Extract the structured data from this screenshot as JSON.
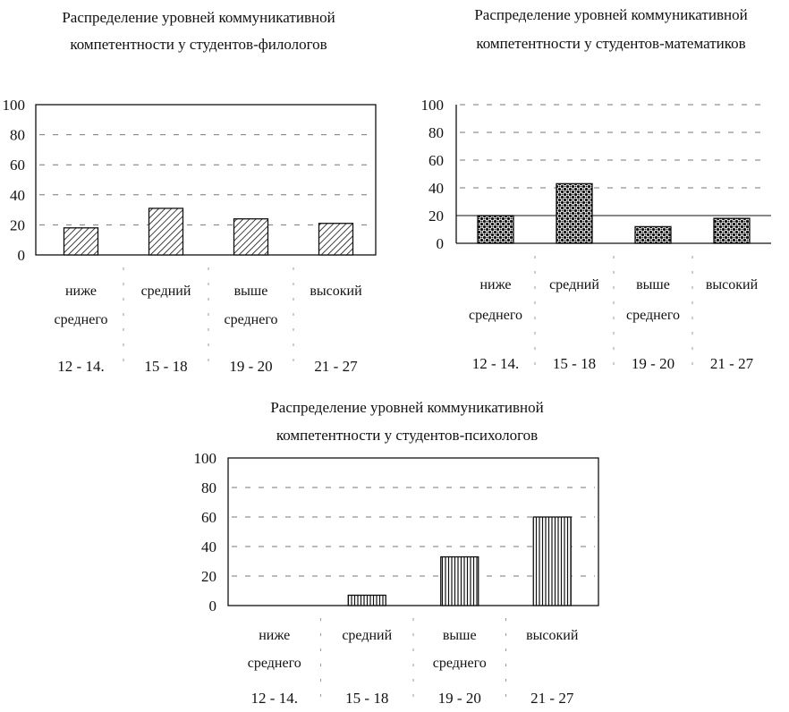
{
  "chart_data": [
    {
      "type": "bar",
      "title": [
        "Распределение уровней коммуникативной",
        "компетентности у студентов-филологов"
      ],
      "categories": [
        [
          "ниже",
          "среднего"
        ],
        [
          "средний"
        ],
        [
          "выше",
          "среднего"
        ],
        [
          "высокий"
        ]
      ],
      "ranges": [
        "12 - 14.",
        "15 - 18",
        "19 - 20",
        "21 - 27"
      ],
      "yticks": [
        "0",
        "20",
        "40",
        "60",
        "80",
        "100"
      ],
      "values": [
        18,
        31,
        24,
        21
      ],
      "ylim": [
        0,
        100
      ],
      "pattern": "diagonal-hatch",
      "grid": true
    },
    {
      "type": "bar",
      "title": [
        "Распределение уровней коммуникативной",
        "компетентности у студентов-математиков"
      ],
      "categories": [
        [
          "ниже",
          "среднего"
        ],
        [
          "средний"
        ],
        [
          "выше",
          "среднего"
        ],
        [
          "высокий"
        ]
      ],
      "ranges": [
        "12 - 14.",
        "15 - 18",
        "19 - 20",
        "21 - 27"
      ],
      "yticks": [
        "0",
        "20",
        "40",
        "60",
        "80",
        "100"
      ],
      "values": [
        20,
        43,
        12,
        18
      ],
      "ylim": [
        0,
        100
      ],
      "pattern": "dotted",
      "grid": true
    },
    {
      "type": "bar",
      "title": [
        "Распределение уровней коммуникативной",
        "компетентности у студентов-психологов"
      ],
      "categories": [
        [
          "ниже",
          "среднего"
        ],
        [
          "средний"
        ],
        [
          "выше",
          "среднего"
        ],
        [
          "высокий"
        ]
      ],
      "ranges": [
        "12 - 14.",
        "15 - 18",
        "19 - 20",
        "21 - 27"
      ],
      "yticks": [
        "0",
        "20",
        "40",
        "60",
        "80",
        "100"
      ],
      "values": [
        0,
        7,
        33,
        60
      ],
      "ylim": [
        0,
        100
      ],
      "pattern": "vertical-lines",
      "grid": true
    }
  ]
}
